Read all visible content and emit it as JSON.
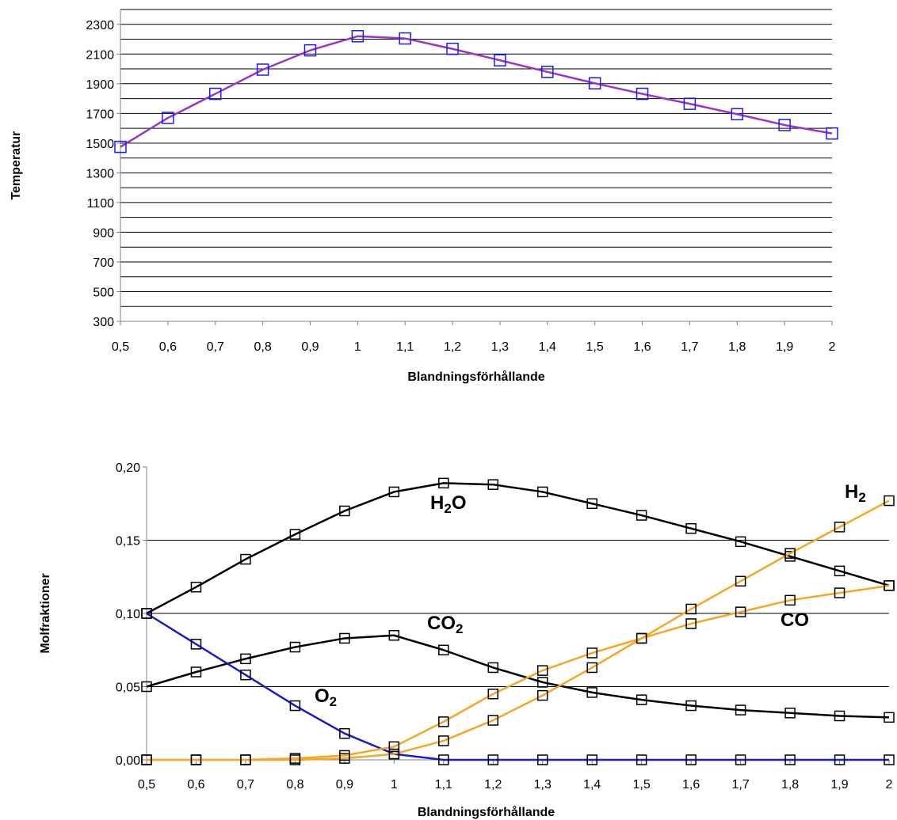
{
  "chart_data": [
    {
      "type": "line",
      "title": "",
      "xlabel": "Blandningsförhållande",
      "ylabel": "Temperatur",
      "x": [
        "0,5",
        "0,6",
        "0,7",
        "0,8",
        "0,9",
        "1",
        "1,1",
        "1,2",
        "1,3",
        "1,4",
        "1,5",
        "1,6",
        "1,7",
        "1,8",
        "1,9",
        "2"
      ],
      "ylim": [
        300,
        2400
      ],
      "yticks": [
        {
          "v": 300,
          "label": "300"
        },
        {
          "v": 500,
          "label": "500"
        },
        {
          "v": 700,
          "label": "700"
        },
        {
          "v": 900,
          "label": "900"
        },
        {
          "v": 1100,
          "label": "1100"
        },
        {
          "v": 1300,
          "label": "1300"
        },
        {
          "v": 1500,
          "label": "1500"
        },
        {
          "v": 1700,
          "label": "1700"
        },
        {
          "v": 1900,
          "label": "1900"
        },
        {
          "v": 2100,
          "label": "2100"
        },
        {
          "v": 2300,
          "label": "2300"
        }
      ],
      "gridlines": [
        400,
        500,
        600,
        700,
        800,
        900,
        1000,
        1100,
        1200,
        1300,
        1400,
        1500,
        1600,
        1700,
        1800,
        1900,
        2000,
        2100,
        2200,
        2300,
        2400
      ],
      "grid": true,
      "series": [
        {
          "values": [
            1475,
            1670,
            1832,
            1995,
            2125,
            2220,
            2205,
            2135,
            2058,
            1980,
            1903,
            1832,
            1765,
            1695,
            1622,
            1565
          ],
          "line_color": "#9933cc",
          "marker_color": "#1a1aff",
          "marker": "square"
        }
      ]
    },
    {
      "type": "line",
      "title": "",
      "xlabel": "Blandningsförhållande",
      "ylabel": "Molfraktioner",
      "x": [
        "0,5",
        "0,6",
        "0,7",
        "0,8",
        "0,9",
        "1",
        "1,1",
        "1,2",
        "1,3",
        "1,4",
        "1,5",
        "1,6",
        "1,7",
        "1,8",
        "1,9",
        "2"
      ],
      "ylim": [
        0,
        0.2
      ],
      "yticks": [
        {
          "v": 0,
          "label": "0,00"
        },
        {
          "v": 0.05,
          "label": "0,05"
        },
        {
          "v": 0.1,
          "label": "0,10"
        },
        {
          "v": 0.15,
          "label": "0,15"
        },
        {
          "v": 0.2,
          "label": "0,20"
        }
      ],
      "gridlines": [
        0.05,
        0.1,
        0.15
      ],
      "grid": true,
      "series": [
        {
          "name": "H",
          "name_sub": "2",
          "name_tail": "O",
          "color": "#000000",
          "values": [
            0.1,
            0.118,
            0.137,
            0.154,
            0.17,
            0.183,
            0.189,
            0.188,
            0.183,
            0.175,
            0.167,
            0.158,
            0.149,
            0.139,
            0.129,
            0.119
          ]
        },
        {
          "name": "CO",
          "name_sub": "2",
          "name_tail": "",
          "color": "#000000",
          "values": [
            0.05,
            0.06,
            0.069,
            0.077,
            0.083,
            0.085,
            0.075,
            0.063,
            0.053,
            0.046,
            0.041,
            0.037,
            0.034,
            0.032,
            0.03,
            0.029
          ]
        },
        {
          "name": "O",
          "name_sub": "2",
          "name_tail": "",
          "color": "#1a1acc",
          "values": [
            0.1,
            0.079,
            0.058,
            0.037,
            0.018,
            0.004,
            0,
            0,
            0,
            0,
            0,
            0,
            0,
            0,
            0,
            0
          ]
        },
        {
          "name": "H",
          "name_sub": "2",
          "name_tail": "",
          "color": "#f5a623",
          "values": [
            0,
            0,
            0,
            0,
            0.001,
            0.004,
            0.013,
            0.027,
            0.044,
            0.063,
            0.083,
            0.103,
            0.122,
            0.141,
            0.159,
            0.177
          ]
        },
        {
          "name": "CO",
          "name_sub": "",
          "name_tail": "",
          "color": "#f5a623",
          "values": [
            0,
            0,
            0,
            0.001,
            0.003,
            0.009,
            0.026,
            0.045,
            0.061,
            0.073,
            0.083,
            0.093,
            0.101,
            0.109,
            0.114,
            0.119
          ]
        }
      ]
    }
  ]
}
